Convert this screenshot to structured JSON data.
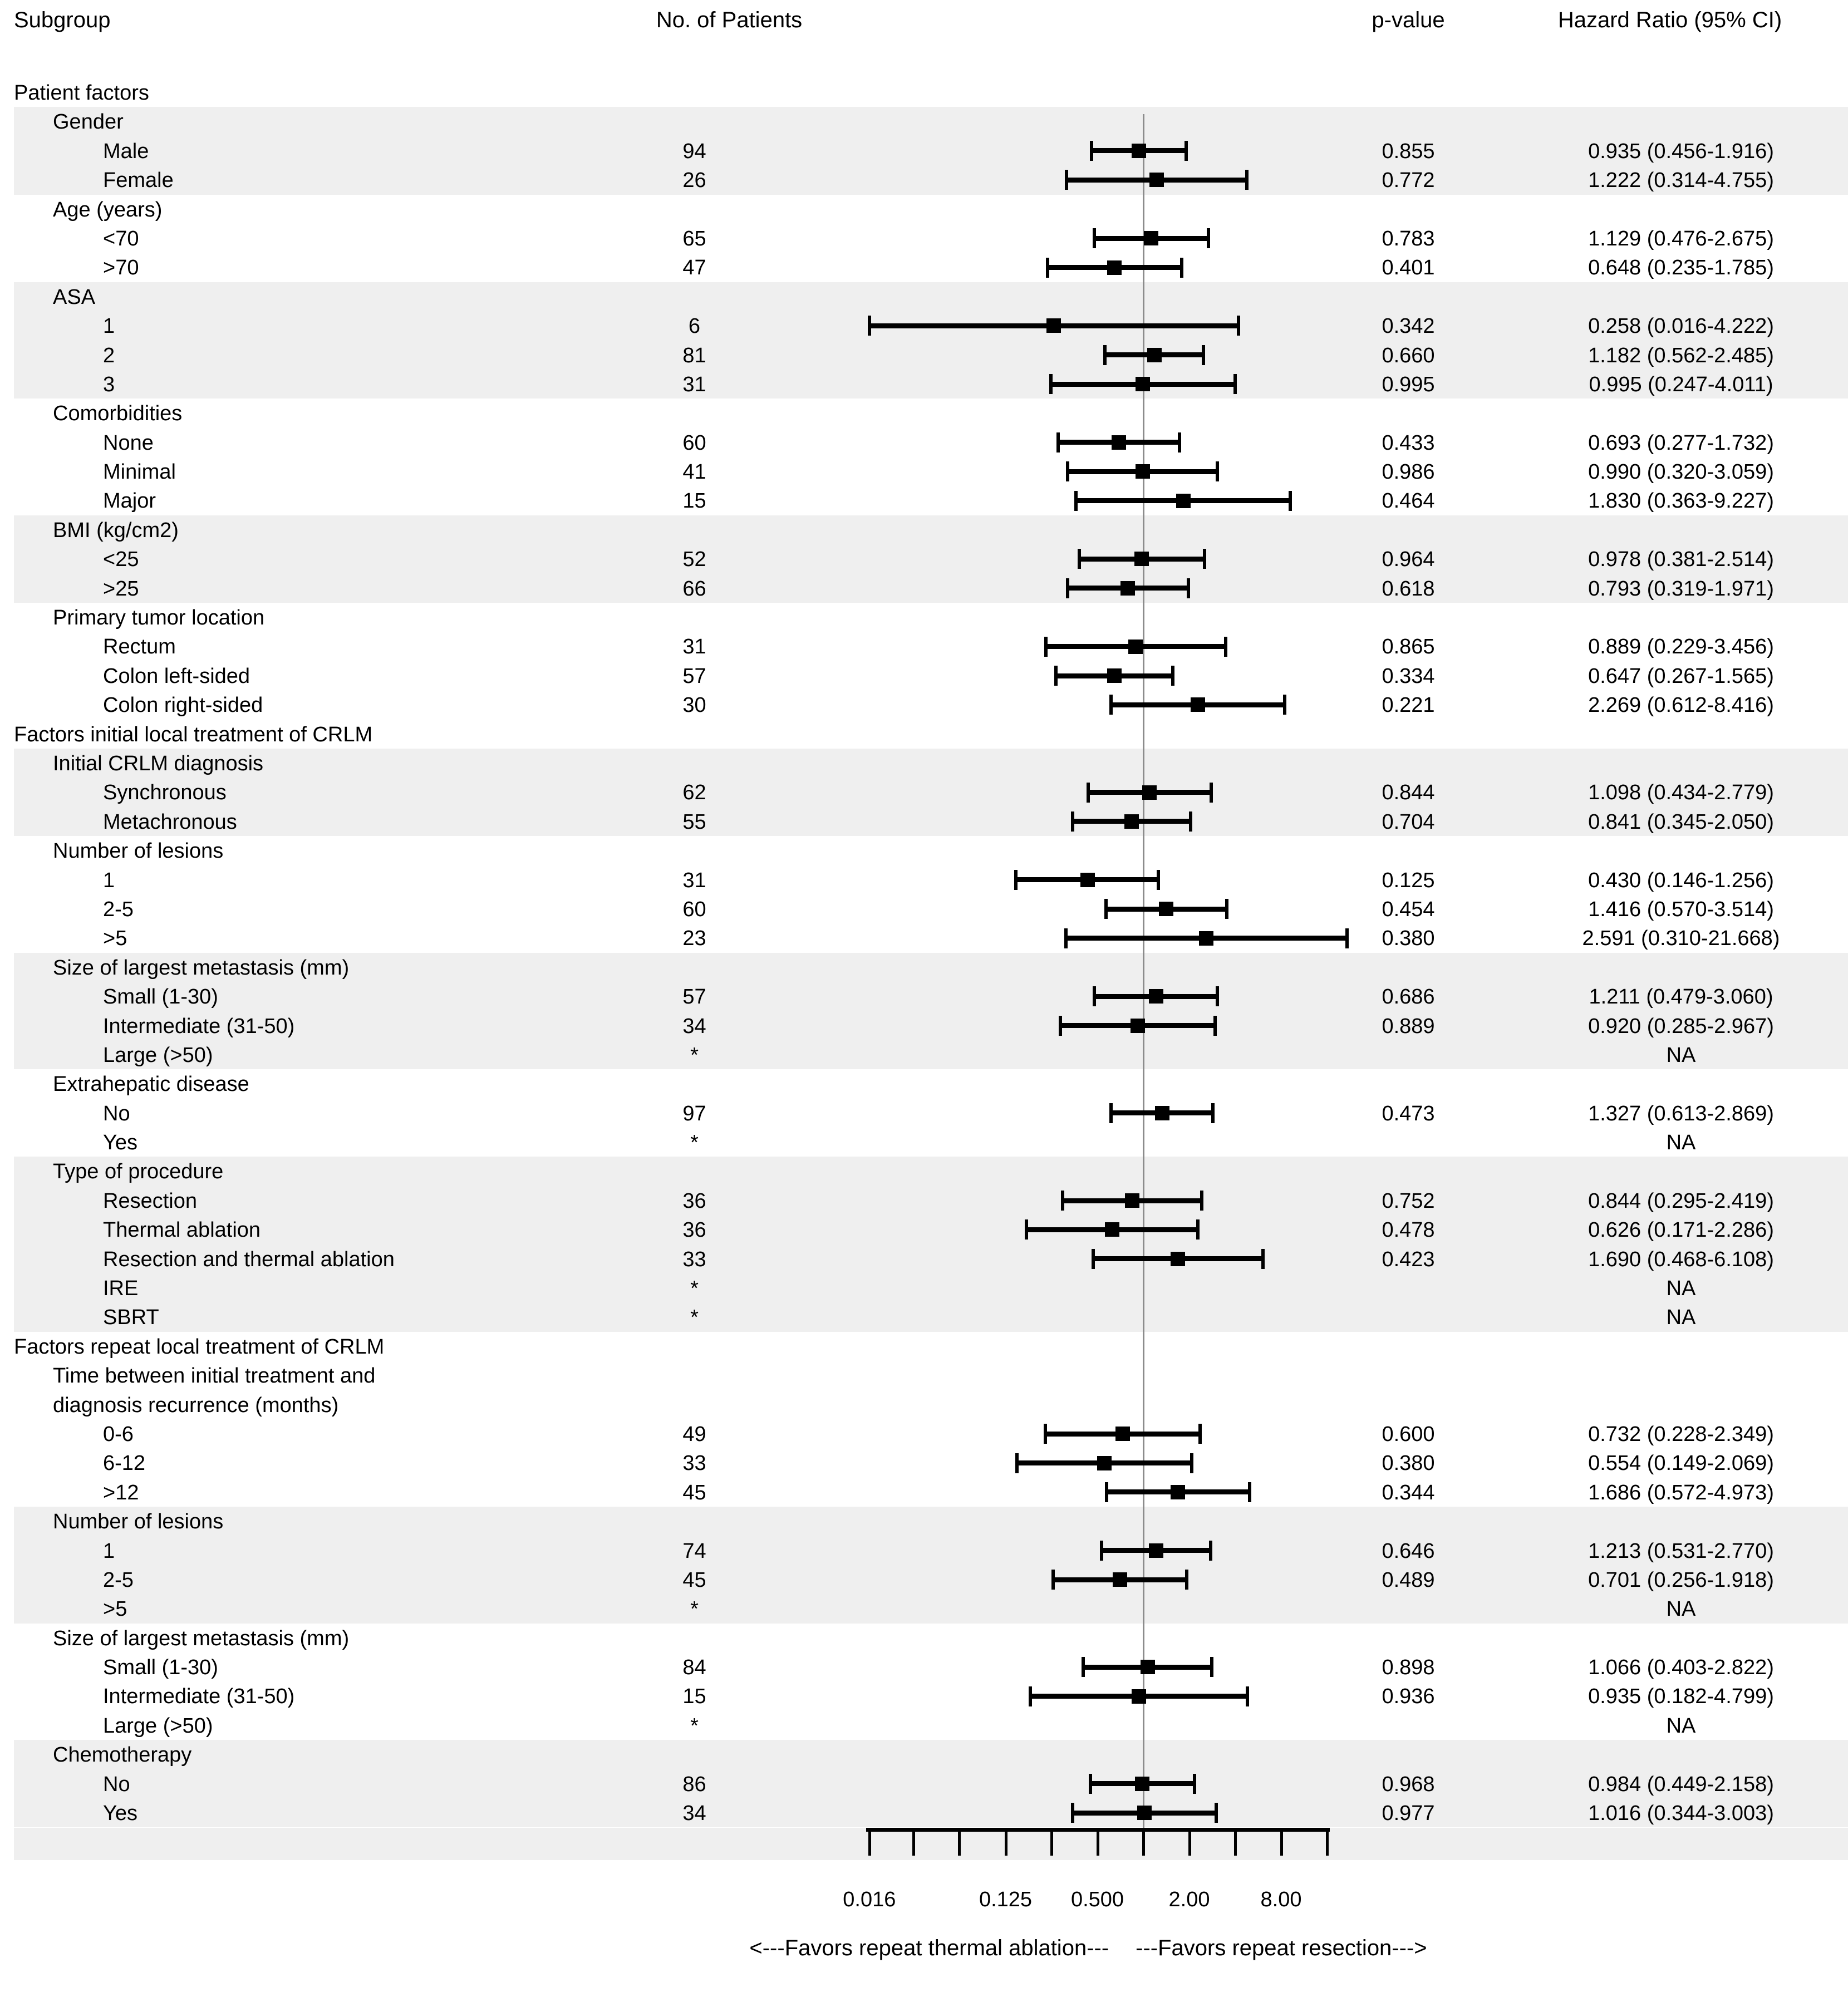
{
  "colors": {
    "band": "#efefef",
    "reference_line": "#8c8c8c",
    "marker": "#000000",
    "text": "#000000"
  },
  "header": {
    "subgroup": "Subgroup",
    "patients": "No. of Patients",
    "pvalue": "p-value",
    "hazard": "Hazard Ratio (95% CI)"
  },
  "footer": {
    "favors_left": "<---Favors repeat thermal ablation---",
    "favors_right": "---Favors repeat resection--->"
  },
  "chart_data": {
    "type": "scatter",
    "subtype": "forest-plot",
    "xlabel": "Hazard Ratio",
    "x_scale": "log2",
    "xlim": [
      0.016,
      16
    ],
    "grid": false,
    "reference_line": 1,
    "x_ticks": [
      0.016,
      0.031,
      0.062,
      0.125,
      0.25,
      0.5,
      1,
      2,
      4,
      8,
      16
    ],
    "x_tick_labels": [
      {
        "value": 0.016,
        "label": "0.016"
      },
      {
        "value": 0.125,
        "label": "0.125"
      },
      {
        "value": 0.5,
        "label": "0.500"
      },
      {
        "value": 2,
        "label": "2.00"
      },
      {
        "value": 8,
        "label": "8.00"
      }
    ],
    "rows": [
      {
        "label": "Patient factors",
        "indent": 0,
        "shaded": false
      },
      {
        "label": "Gender",
        "indent": 1,
        "shaded": true
      },
      {
        "label": "Male",
        "indent": 2,
        "shaded": true,
        "n": "94",
        "p": "0.855",
        "hr_text": "0.935 (0.456-1.916)",
        "est": 0.935,
        "lo": 0.456,
        "hi": 1.916
      },
      {
        "label": "Female",
        "indent": 2,
        "shaded": true,
        "n": "26",
        "p": "0.772",
        "hr_text": "1.222 (0.314-4.755)",
        "est": 1.222,
        "lo": 0.314,
        "hi": 4.755
      },
      {
        "label": "Age (years)",
        "indent": 1,
        "shaded": false
      },
      {
        "label": "<70",
        "indent": 2,
        "shaded": false,
        "n": "65",
        "p": "0.783",
        "hr_text": "1.129 (0.476-2.675)",
        "est": 1.129,
        "lo": 0.476,
        "hi": 2.675
      },
      {
        "label": ">70",
        "indent": 2,
        "shaded": false,
        "n": "47",
        "p": "0.401",
        "hr_text": "0.648 (0.235-1.785)",
        "est": 0.648,
        "lo": 0.235,
        "hi": 1.785
      },
      {
        "label": "ASA",
        "indent": 1,
        "shaded": true
      },
      {
        "label": "1",
        "indent": 2,
        "shaded": true,
        "n": "6",
        "p": "0.342",
        "hr_text": "0.258 (0.016-4.222)",
        "est": 0.258,
        "lo": 0.016,
        "hi": 4.222
      },
      {
        "label": "2",
        "indent": 2,
        "shaded": true,
        "n": "81",
        "p": "0.660",
        "hr_text": "1.182 (0.562-2.485)",
        "est": 1.182,
        "lo": 0.562,
        "hi": 2.485
      },
      {
        "label": "3",
        "indent": 2,
        "shaded": true,
        "n": "31",
        "p": "0.995",
        "hr_text": "0.995 (0.247-4.011)",
        "est": 0.995,
        "lo": 0.247,
        "hi": 4.011
      },
      {
        "label": "Comorbidities",
        "indent": 1,
        "shaded": false
      },
      {
        "label": "None",
        "indent": 2,
        "shaded": false,
        "n": "60",
        "p": "0.433",
        "hr_text": "0.693 (0.277-1.732)",
        "est": 0.693,
        "lo": 0.277,
        "hi": 1.732
      },
      {
        "label": "Minimal",
        "indent": 2,
        "shaded": false,
        "n": "41",
        "p": "0.986",
        "hr_text": "0.990 (0.320-3.059)",
        "est": 0.99,
        "lo": 0.32,
        "hi": 3.059
      },
      {
        "label": "Major",
        "indent": 2,
        "shaded": false,
        "n": "15",
        "p": "0.464",
        "hr_text": "1.830 (0.363-9.227)",
        "est": 1.83,
        "lo": 0.363,
        "hi": 9.227
      },
      {
        "label": "BMI (kg/cm2)",
        "indent": 1,
        "shaded": true
      },
      {
        "label": "<25",
        "indent": 2,
        "shaded": true,
        "n": "52",
        "p": "0.964",
        "hr_text": "0.978 (0.381-2.514)",
        "est": 0.978,
        "lo": 0.381,
        "hi": 2.514
      },
      {
        "label": ">25",
        "indent": 2,
        "shaded": true,
        "n": "66",
        "p": "0.618",
        "hr_text": "0.793 (0.319-1.971)",
        "est": 0.793,
        "lo": 0.319,
        "hi": 1.971
      },
      {
        "label": "Primary tumor location",
        "indent": 1,
        "shaded": false
      },
      {
        "label": "Rectum",
        "indent": 2,
        "shaded": false,
        "n": "31",
        "p": "0.865",
        "hr_text": "0.889 (0.229-3.456)",
        "est": 0.889,
        "lo": 0.229,
        "hi": 3.456
      },
      {
        "label": "Colon left-sided",
        "indent": 2,
        "shaded": false,
        "n": "57",
        "p": "0.334",
        "hr_text": "0.647 (0.267-1.565)",
        "est": 0.647,
        "lo": 0.267,
        "hi": 1.565
      },
      {
        "label": "Colon right-sided",
        "indent": 2,
        "shaded": false,
        "n": "30",
        "p": "0.221",
        "hr_text": "2.269 (0.612-8.416)",
        "est": 2.269,
        "lo": 0.612,
        "hi": 8.416
      },
      {
        "label": "Factors initial local treatment of CRLM",
        "indent": 0,
        "shaded": false
      },
      {
        "label": "Initial CRLM diagnosis",
        "indent": 1,
        "shaded": true
      },
      {
        "label": "Synchronous",
        "indent": 2,
        "shaded": true,
        "n": "62",
        "p": "0.844",
        "hr_text": "1.098 (0.434-2.779)",
        "est": 1.098,
        "lo": 0.434,
        "hi": 2.779
      },
      {
        "label": "Metachronous",
        "indent": 2,
        "shaded": true,
        "n": "55",
        "p": "0.704",
        "hr_text": "0.841 (0.345-2.050)",
        "est": 0.841,
        "lo": 0.345,
        "hi": 2.05
      },
      {
        "label": "Number of lesions",
        "indent": 1,
        "shaded": false
      },
      {
        "label": "1",
        "indent": 2,
        "shaded": false,
        "n": "31",
        "p": "0.125",
        "hr_text": "0.430 (0.146-1.256)",
        "est": 0.43,
        "lo": 0.146,
        "hi": 1.256
      },
      {
        "label": "2-5",
        "indent": 2,
        "shaded": false,
        "n": "60",
        "p": "0.454",
        "hr_text": "1.416 (0.570-3.514)",
        "est": 1.416,
        "lo": 0.57,
        "hi": 3.514
      },
      {
        "label": ">5",
        "indent": 2,
        "shaded": false,
        "n": "23",
        "p": "0.380",
        "hr_text": "2.591 (0.310-21.668)",
        "est": 2.591,
        "lo": 0.31,
        "hi": 21.668
      },
      {
        "label": "Size of largest metastasis (mm)",
        "indent": 1,
        "shaded": true
      },
      {
        "label": "Small (1-30)",
        "indent": 2,
        "shaded": true,
        "n": "57",
        "p": "0.686",
        "hr_text": "1.211 (0.479-3.060)",
        "est": 1.211,
        "lo": 0.479,
        "hi": 3.06
      },
      {
        "label": "Intermediate (31-50)",
        "indent": 2,
        "shaded": true,
        "n": "34",
        "p": "0.889",
        "hr_text": "0.920 (0.285-2.967)",
        "est": 0.92,
        "lo": 0.285,
        "hi": 2.967
      },
      {
        "label": "Large (>50)",
        "indent": 2,
        "shaded": true,
        "n": "*",
        "hr_text": "NA"
      },
      {
        "label": "Extrahepatic disease",
        "indent": 1,
        "shaded": false
      },
      {
        "label": "No",
        "indent": 2,
        "shaded": false,
        "n": "97",
        "p": "0.473",
        "hr_text": "1.327 (0.613-2.869)",
        "est": 1.327,
        "lo": 0.613,
        "hi": 2.869
      },
      {
        "label": "Yes",
        "indent": 2,
        "shaded": false,
        "n": "*",
        "hr_text": "NA"
      },
      {
        "label": "Type of procedure",
        "indent": 1,
        "shaded": true
      },
      {
        "label": "Resection",
        "indent": 2,
        "shaded": true,
        "n": "36",
        "p": "0.752",
        "hr_text": "0.844 (0.295-2.419)",
        "est": 0.844,
        "lo": 0.295,
        "hi": 2.419
      },
      {
        "label": "Thermal ablation",
        "indent": 2,
        "shaded": true,
        "n": "36",
        "p": "0.478",
        "hr_text": "0.626 (0.171-2.286)",
        "est": 0.626,
        "lo": 0.171,
        "hi": 2.286
      },
      {
        "label": "Resection and thermal ablation",
        "indent": 2,
        "shaded": true,
        "n": "33",
        "p": "0.423",
        "hr_text": "1.690 (0.468-6.108)",
        "est": 1.69,
        "lo": 0.468,
        "hi": 6.108
      },
      {
        "label": "IRE",
        "indent": 2,
        "shaded": true,
        "n": "*",
        "hr_text": "NA"
      },
      {
        "label": "SBRT",
        "indent": 2,
        "shaded": true,
        "n": "*",
        "hr_text": "NA"
      },
      {
        "label": "Factors repeat local treatment of CRLM",
        "indent": 0,
        "shaded": false
      },
      {
        "label": "Time between initial treatment and",
        "indent": 1,
        "shaded": false
      },
      {
        "label": "diagnosis recurrence (months)",
        "indent": 1,
        "shaded": false
      },
      {
        "label": "0-6",
        "indent": 2,
        "shaded": false,
        "n": "49",
        "p": "0.600",
        "hr_text": "0.732 (0.228-2.349)",
        "est": 0.732,
        "lo": 0.228,
        "hi": 2.349
      },
      {
        "label": "6-12",
        "indent": 2,
        "shaded": false,
        "n": "33",
        "p": "0.380",
        "hr_text": "0.554 (0.149-2.069)",
        "est": 0.554,
        "lo": 0.149,
        "hi": 2.069
      },
      {
        "label": ">12",
        "indent": 2,
        "shaded": false,
        "n": "45",
        "p": "0.344",
        "hr_text": "1.686 (0.572-4.973)",
        "est": 1.686,
        "lo": 0.572,
        "hi": 4.973
      },
      {
        "label": "Number of lesions",
        "indent": 1,
        "shaded": true
      },
      {
        "label": "1",
        "indent": 2,
        "shaded": true,
        "n": "74",
        "p": "0.646",
        "hr_text": "1.213 (0.531-2.770)",
        "est": 1.213,
        "lo": 0.531,
        "hi": 2.77
      },
      {
        "label": "2-5",
        "indent": 2,
        "shaded": true,
        "n": "45",
        "p": "0.489",
        "hr_text": "0.701 (0.256-1.918)",
        "est": 0.701,
        "lo": 0.256,
        "hi": 1.918
      },
      {
        "label": ">5",
        "indent": 2,
        "shaded": true,
        "n": "*",
        "hr_text": "NA"
      },
      {
        "label": "Size of largest metastasis (mm)",
        "indent": 1,
        "shaded": false
      },
      {
        "label": "Small (1-30)",
        "indent": 2,
        "shaded": false,
        "n": "84",
        "p": "0.898",
        "hr_text": "1.066 (0.403-2.822)",
        "est": 1.066,
        "lo": 0.403,
        "hi": 2.822
      },
      {
        "label": "Intermediate (31-50)",
        "indent": 2,
        "shaded": false,
        "n": "15",
        "p": "0.936",
        "hr_text": "0.935 (0.182-4.799)",
        "est": 0.935,
        "lo": 0.182,
        "hi": 4.799
      },
      {
        "label": "Large (>50)",
        "indent": 2,
        "shaded": false,
        "n": "*",
        "hr_text": "NA"
      },
      {
        "label": "Chemotherapy",
        "indent": 1,
        "shaded": true
      },
      {
        "label": "No",
        "indent": 2,
        "shaded": true,
        "n": "86",
        "p": "0.968",
        "hr_text": "0.984 (0.449-2.158)",
        "est": 0.984,
        "lo": 0.449,
        "hi": 2.158
      },
      {
        "label": "Yes",
        "indent": 2,
        "shaded": true,
        "n": "34",
        "p": "0.977",
        "hr_text": "1.016 (0.344-3.003)",
        "est": 1.016,
        "lo": 0.344,
        "hi": 3.003
      }
    ]
  }
}
